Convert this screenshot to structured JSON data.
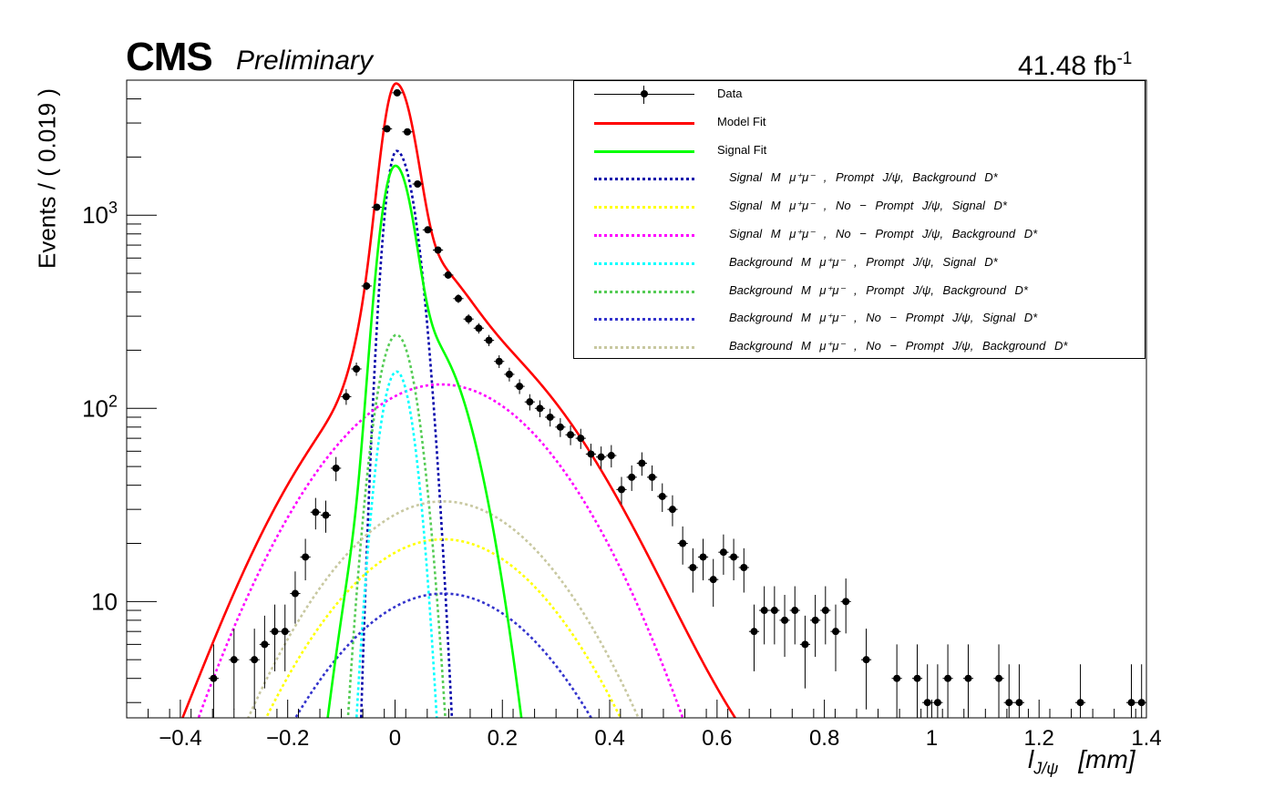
{
  "header": {
    "experiment": "CMS",
    "status": "Preliminary",
    "lumi": "41.48 fb",
    "lumi_exp": "-1"
  },
  "axes": {
    "ylabel": "Events / ( 0.019 )",
    "xlabel_var": "l",
    "xlabel_sub": "J/ψ",
    "xlabel_unit": "[mm]"
  },
  "chart_data": {
    "type": "scatter",
    "xlim": [
      -0.5,
      1.4
    ],
    "ylim": [
      2.5,
      5000
    ],
    "yscale": "log",
    "grid": false,
    "legend_placement": "top-right",
    "x_ticks": [
      -0.4,
      -0.2,
      0,
      0.2,
      0.4,
      0.6,
      0.8,
      1,
      1.2,
      1.4
    ],
    "x_tick_labels": [
      "−0.4",
      "−0.2",
      "0",
      "0.2",
      "0.4",
      "0.6",
      "0.8",
      "1",
      "1.2",
      "1.4"
    ],
    "y_tick_labels": [
      {
        "value": 10,
        "base": "10",
        "exp": ""
      },
      {
        "value": 100,
        "base": "10",
        "exp": "2"
      },
      {
        "value": 1000,
        "base": "10",
        "exp": "3"
      }
    ],
    "data": {
      "name": "Data",
      "x_half_width": 0.0095,
      "points": [
        [
          -0.338,
          4
        ],
        [
          -0.3,
          5
        ],
        [
          -0.262,
          5
        ],
        [
          -0.243,
          6
        ],
        [
          -0.224,
          7
        ],
        [
          -0.205,
          7
        ],
        [
          -0.186,
          11
        ],
        [
          -0.167,
          17
        ],
        [
          -0.148,
          29
        ],
        [
          -0.129,
          28
        ],
        [
          -0.11,
          49
        ],
        [
          -0.091,
          115
        ],
        [
          -0.072,
          160
        ],
        [
          -0.053,
          430
        ],
        [
          -0.034,
          1100
        ],
        [
          -0.015,
          2800
        ],
        [
          0.004,
          4300
        ],
        [
          0.023,
          2700
        ],
        [
          0.042,
          1450
        ],
        [
          0.061,
          840
        ],
        [
          0.08,
          660
        ],
        [
          0.099,
          490
        ],
        [
          0.118,
          370
        ],
        [
          0.137,
          290
        ],
        [
          0.156,
          260
        ],
        [
          0.175,
          225
        ],
        [
          0.194,
          175
        ],
        [
          0.213,
          150
        ],
        [
          0.232,
          130
        ],
        [
          0.251,
          108
        ],
        [
          0.27,
          100
        ],
        [
          0.289,
          90
        ],
        [
          0.308,
          80
        ],
        [
          0.327,
          73
        ],
        [
          0.346,
          70
        ],
        [
          0.365,
          58
        ],
        [
          0.384,
          56
        ],
        [
          0.403,
          57
        ],
        [
          0.422,
          38
        ],
        [
          0.441,
          44
        ],
        [
          0.46,
          52
        ],
        [
          0.479,
          44
        ],
        [
          0.498,
          35
        ],
        [
          0.517,
          30
        ],
        [
          0.536,
          20
        ],
        [
          0.555,
          15
        ],
        [
          0.574,
          17
        ],
        [
          0.593,
          13
        ],
        [
          0.612,
          18
        ],
        [
          0.631,
          17
        ],
        [
          0.65,
          15
        ],
        [
          0.669,
          7
        ],
        [
          0.688,
          9
        ],
        [
          0.707,
          9
        ],
        [
          0.726,
          8
        ],
        [
          0.745,
          9
        ],
        [
          0.764,
          6
        ],
        [
          0.783,
          8
        ],
        [
          0.802,
          9
        ],
        [
          0.821,
          7
        ],
        [
          0.84,
          10
        ],
        [
          0.878,
          5
        ],
        [
          0.935,
          4
        ],
        [
          0.973,
          4
        ],
        [
          0.992,
          3
        ],
        [
          1.011,
          3
        ],
        [
          1.03,
          4
        ],
        [
          1.068,
          4
        ],
        [
          1.125,
          4
        ],
        [
          1.144,
          3
        ],
        [
          1.163,
          3
        ],
        [
          1.277,
          3
        ],
        [
          1.372,
          3
        ],
        [
          1.391,
          3
        ]
      ]
    },
    "series": [
      {
        "name": "Model Fit",
        "color": "#ff0000",
        "dash": "solid",
        "width": 2.6
      },
      {
        "name": "Signal Fit",
        "color": "#00ff00",
        "dash": "solid",
        "width": 2.6
      },
      {
        "name": "Signal M_{μ+μ−}, Prompt J/ψ, Background D*",
        "color": "#0000aa",
        "dash": "dot",
        "width": 2.6,
        "amp": 2150,
        "mu": 0.003,
        "sl": 0.018,
        "sr": 0.028
      },
      {
        "name": "Signal M_{μ+μ−}, No−Prompt J/ψ, Signal D*",
        "color": "#ffff00",
        "dash": "dot",
        "width": 2.6,
        "amp": 21,
        "mu": 0.09,
        "sigma": 0.16
      },
      {
        "name": "Signal M_{μ+μ−}, No−Prompt J/ψ, Background D*",
        "color": "#ff00ff",
        "dash": "dot",
        "width": 2.6,
        "amp": 133,
        "mu": 0.085,
        "sigma": 0.16
      },
      {
        "name": "Background M_{μ+μ−}, Prompt J/ψ, Signal D*",
        "color": "#00ffff",
        "dash": "dot",
        "width": 2.6,
        "amp": 155,
        "mu": 0.003,
        "sigma": 0.026
      },
      {
        "name": "Background M_{μ+μ−}, Prompt J/ψ, Background D*",
        "color": "#55cc55",
        "dash": "dot",
        "width": 2.6,
        "amp": 240,
        "mu": 0.003,
        "sigma": 0.03
      },
      {
        "name": "Background M_{μ+μ−}, No−Prompt J/ψ, Signal D*",
        "color": "#3333cc",
        "dash": "dot",
        "width": 2.6,
        "amp": 11,
        "mu": 0.09,
        "sigma": 0.16
      },
      {
        "name": "Background M_{μ+μ−}, No−Prompt J/ψ, Background D*",
        "color": "#c8c8a0",
        "dash": "dot",
        "width": 2.6,
        "amp": 33,
        "mu": 0.09,
        "sigma": 0.16
      }
    ]
  },
  "legend": {
    "entries": [
      {
        "label": "Data",
        "color": "#000000",
        "kind": "data"
      },
      {
        "label": "Model Fit",
        "color": "#ff0000",
        "kind": "solid"
      },
      {
        "label": "Signal Fit",
        "color": "#00ff00",
        "kind": "solid"
      },
      {
        "label": "Signal M μ⁺μ⁻ , Prompt J/ψ, Background D*",
        "color": "#0000aa",
        "kind": "dot"
      },
      {
        "label": "Signal M μ⁺μ⁻ , No − Prompt J/ψ, Signal D*",
        "color": "#ffff00",
        "kind": "dot"
      },
      {
        "label": "Signal M μ⁺μ⁻ , No − Prompt J/ψ, Background D*",
        "color": "#ff00ff",
        "kind": "dot"
      },
      {
        "label": "Background M μ⁺μ⁻ , Prompt J/ψ, Signal D*",
        "color": "#00ffff",
        "kind": "dot"
      },
      {
        "label": "Background M μ⁺μ⁻ , Prompt J/ψ, Background D*",
        "color": "#55cc55",
        "kind": "dot"
      },
      {
        "label": "Background M μ⁺μ⁻ , No − Prompt J/ψ, Signal D*",
        "color": "#3333cc",
        "kind": "dot"
      },
      {
        "label": "Background M μ⁺μ⁻ , No − Prompt J/ψ, Background D*",
        "color": "#c8c8a0",
        "kind": "dot"
      }
    ]
  }
}
